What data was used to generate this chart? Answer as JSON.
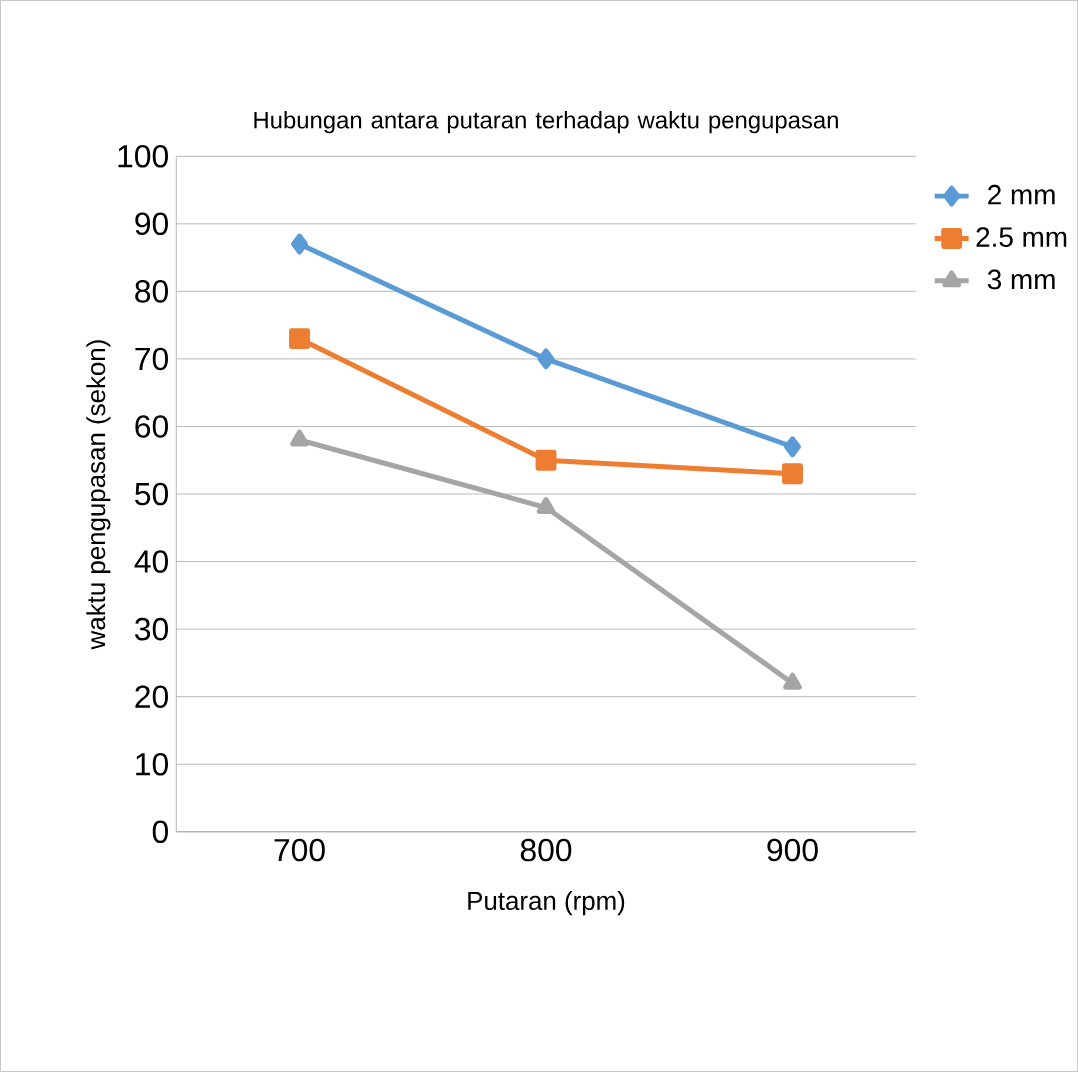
{
  "chart_data": {
    "type": "line",
    "title": "Hubungan antara putaran terhadap  waktu pengupasan",
    "xlabel": "Putaran (rpm)",
    "ylabel": "waktu pengupasan (sekon)",
    "categories": [
      "700",
      "800",
      "900"
    ],
    "series": [
      {
        "name": "2 mm",
        "color": "#5b9bd5",
        "marker": "diamond",
        "values": [
          87,
          70,
          57
        ]
      },
      {
        "name": "2.5 mm",
        "color": "#ed7d31",
        "marker": "square",
        "values": [
          73,
          55,
          53
        ]
      },
      {
        "name": "3 mm",
        "color": "#a5a5a5",
        "marker": "triangle",
        "values": [
          58,
          48,
          22
        ]
      }
    ],
    "ylim": [
      0,
      100
    ],
    "yticks": [
      0,
      10,
      20,
      30,
      40,
      50,
      60,
      70,
      80,
      90,
      100
    ],
    "grid": "y",
    "legend": "top right",
    "line_style": "solid"
  }
}
